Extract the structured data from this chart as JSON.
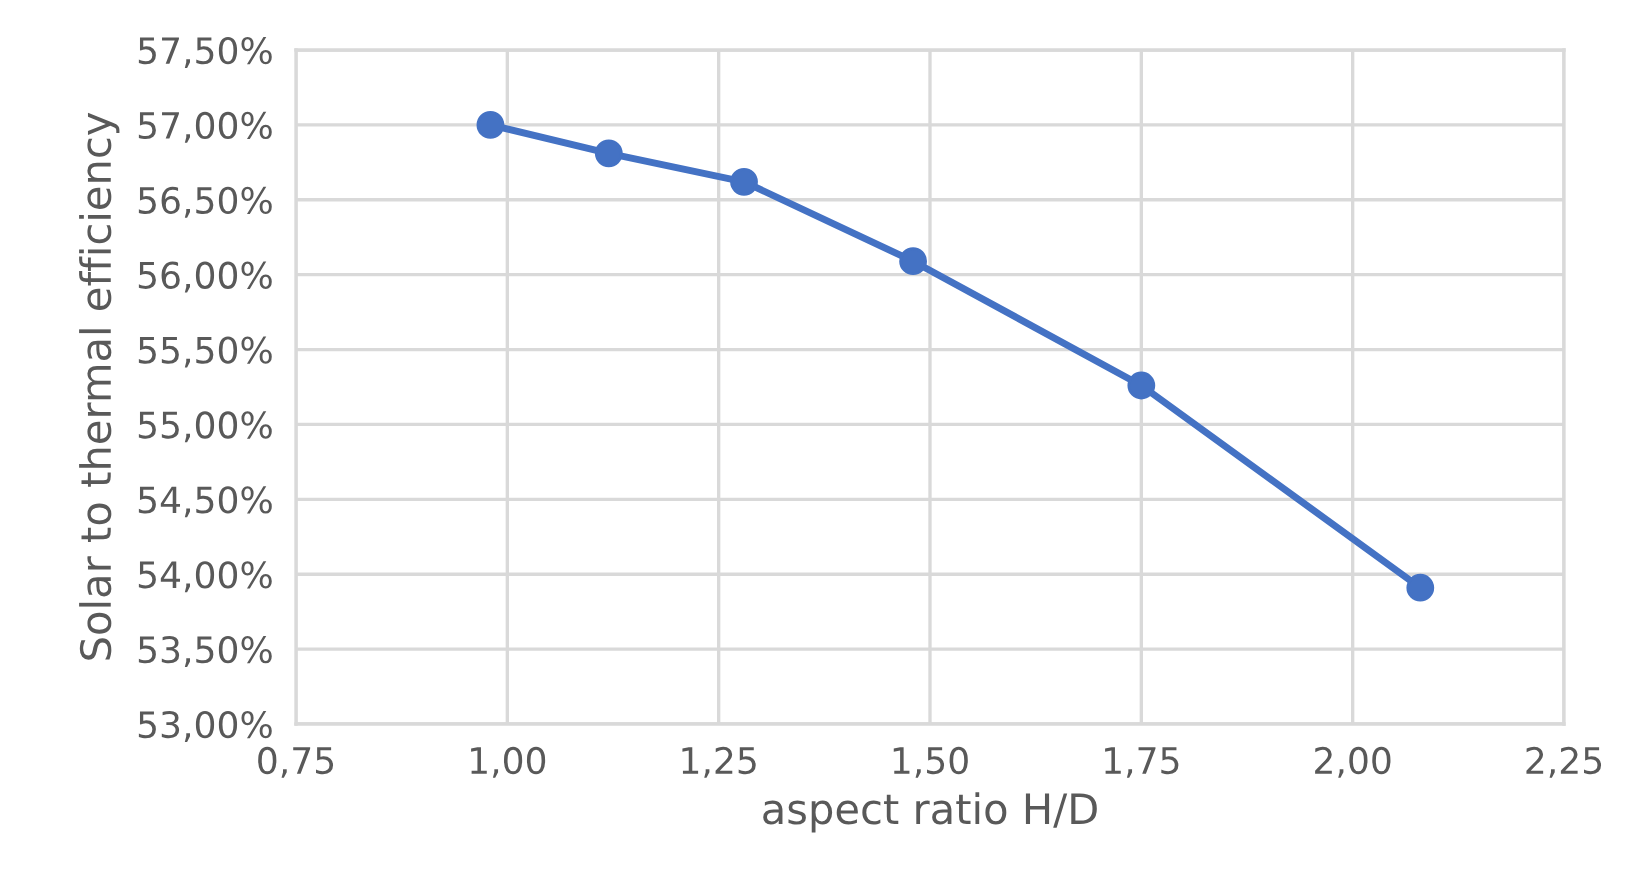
{
  "chart_data": {
    "type": "line",
    "xlabel": "aspect ratio H/D",
    "ylabel": "Solar to thermal efficiency",
    "x": [
      0.98,
      1.12,
      1.28,
      1.48,
      1.75,
      2.08
    ],
    "series": [
      {
        "color": "#4472c4",
        "values": [
          57.0,
          56.81,
          56.62,
          56.09,
          55.26,
          53.91
        ]
      }
    ],
    "xlim": [
      0.75,
      2.25
    ],
    "xticks": [
      {
        "value": 0.75,
        "label": "0,75"
      },
      {
        "value": 1.0,
        "label": "1,00"
      },
      {
        "value": 1.25,
        "label": "1,25"
      },
      {
        "value": 1.5,
        "label": "1,50"
      },
      {
        "value": 1.75,
        "label": "1,75"
      },
      {
        "value": 2.0,
        "label": "2,00"
      },
      {
        "value": 2.25,
        "label": "2,25"
      }
    ],
    "ylim": [
      53.0,
      57.5
    ],
    "yticks": [
      {
        "value": 53.0,
        "label": "53,00%"
      },
      {
        "value": 53.5,
        "label": "53,50%"
      },
      {
        "value": 54.0,
        "label": "54,00%"
      },
      {
        "value": 54.5,
        "label": "54,50%"
      },
      {
        "value": 55.0,
        "label": "55,00%"
      },
      {
        "value": 55.5,
        "label": "55,50%"
      },
      {
        "value": 56.0,
        "label": "56,00%"
      },
      {
        "value": 56.5,
        "label": "56,50%"
      },
      {
        "value": 57.0,
        "label": "57,00%"
      },
      {
        "value": 57.5,
        "label": "57,50%"
      }
    ],
    "grid": true,
    "marker": "circle",
    "line_style": "solid"
  }
}
